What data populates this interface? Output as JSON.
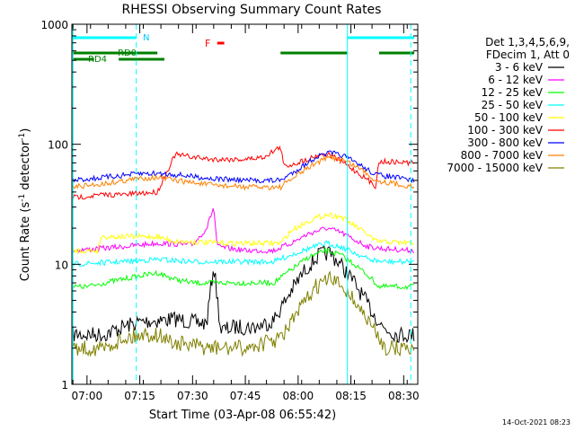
{
  "chart_data": {
    "type": "line",
    "title": "RHESSI Observing Summary Count Rates",
    "xlabel": "Start Time (03-Apr-08 06:55:42)",
    "ylabel": "Count Rate (s⁻¹ detector⁻¹)",
    "ylabel_main": "Count Rate (s",
    "ylabel_sup1": "-1",
    "ylabel_mid": " detector",
    "ylabel_sup2": "-1",
    "ylabel_end": ")",
    "yscale": "log",
    "ylim": [
      1,
      1000
    ],
    "xlim": [
      "06:55:42",
      "08:34:00"
    ],
    "x_ticks": [
      "07:00",
      "07:15",
      "07:30",
      "07:45",
      "08:00",
      "08:15",
      "08:30"
    ],
    "y_ticks": [
      "1",
      "10",
      "100",
      "1000"
    ],
    "info": [
      "Det 1,3,4,5,6,9,",
      "FDecim 1, Att 0"
    ],
    "datestamp": "14-Oct-2021 08:23",
    "flag_labels": {
      "N": "N",
      "F": "F",
      "RD0": "RD0",
      "RD4": "RD4"
    },
    "vlines_cyan_dashed": [
      "07:14:00",
      "08:32:00"
    ],
    "vlines_cyan_solid": [
      "06:56:00",
      "08:14:00"
    ],
    "series": [
      {
        "name": "3 - 6 keV",
        "color": "#000000",
        "points": [
          [
            "06:56",
            2.6
          ],
          [
            "07:05",
            2.6
          ],
          [
            "07:10",
            3.0
          ],
          [
            "07:15",
            3.3
          ],
          [
            "07:20",
            3.4
          ],
          [
            "07:25",
            3.5
          ],
          [
            "07:30",
            3.3
          ],
          [
            "07:34",
            3.2
          ],
          [
            "07:36",
            10.0
          ],
          [
            "07:38",
            2.8
          ],
          [
            "07:42",
            3.0
          ],
          [
            "07:48",
            3.0
          ],
          [
            "07:53",
            3.4
          ],
          [
            "07:58",
            6.0
          ],
          [
            "08:02",
            9.0
          ],
          [
            "08:06",
            12.0
          ],
          [
            "08:09",
            12.5
          ],
          [
            "08:12",
            10.0
          ],
          [
            "08:16",
            7.0
          ],
          [
            "08:20",
            4.5
          ],
          [
            "08:24",
            3.0
          ],
          [
            "08:28",
            2.6
          ],
          [
            "08:33",
            2.6
          ]
        ]
      },
      {
        "name": "6 - 12 keV",
        "color": "#ff00ff",
        "points": [
          [
            "06:56",
            13.0
          ],
          [
            "07:10",
            14.0
          ],
          [
            "07:20",
            15.0
          ],
          [
            "07:30",
            14.5
          ],
          [
            "07:34",
            20.0
          ],
          [
            "07:36",
            30.0
          ],
          [
            "07:37",
            14.0
          ],
          [
            "07:45",
            13.0
          ],
          [
            "07:53",
            13.0
          ],
          [
            "07:58",
            15.0
          ],
          [
            "08:03",
            18.0
          ],
          [
            "08:08",
            20.0
          ],
          [
            "08:12",
            18.5
          ],
          [
            "08:16",
            16.0
          ],
          [
            "08:20",
            14.0
          ],
          [
            "08:24",
            13.5
          ],
          [
            "08:33",
            13.0
          ]
        ]
      },
      {
        "name": "12 - 25 keV",
        "color": "#00ff00",
        "points": [
          [
            "06:56",
            6.5
          ],
          [
            "07:00",
            6.5
          ],
          [
            "07:05",
            7.0
          ],
          [
            "07:10",
            7.5
          ],
          [
            "07:15",
            8.0
          ],
          [
            "07:20",
            8.5
          ],
          [
            "07:25",
            7.5
          ],
          [
            "07:30",
            7.0
          ],
          [
            "07:40",
            7.0
          ],
          [
            "07:53",
            7.0
          ],
          [
            "07:58",
            9.0
          ],
          [
            "08:03",
            11.5
          ],
          [
            "08:08",
            13.0
          ],
          [
            "08:12",
            12.0
          ],
          [
            "08:16",
            10.0
          ],
          [
            "08:20",
            8.0
          ],
          [
            "08:23",
            6.5
          ],
          [
            "08:33",
            6.5
          ]
        ]
      },
      {
        "name": "25 - 50 keV",
        "color": "#00ffff",
        "points": [
          [
            "06:56",
            10.0
          ],
          [
            "07:10",
            10.5
          ],
          [
            "07:20",
            11.0
          ],
          [
            "07:30",
            10.5
          ],
          [
            "07:40",
            10.5
          ],
          [
            "07:53",
            10.5
          ],
          [
            "07:58",
            12.0
          ],
          [
            "08:03",
            13.5
          ],
          [
            "08:08",
            15.0
          ],
          [
            "08:12",
            14.0
          ],
          [
            "08:16",
            12.5
          ],
          [
            "08:20",
            11.0
          ],
          [
            "08:24",
            10.5
          ],
          [
            "08:33",
            10.5
          ]
        ]
      },
      {
        "name": "50 - 100 keV",
        "color": "#ffff00",
        "points": [
          [
            "06:56",
            13.0
          ],
          [
            "07:03",
            13.0
          ],
          [
            "07:04",
            17.0
          ],
          [
            "07:15",
            17.0
          ],
          [
            "07:20",
            17.0
          ],
          [
            "07:25",
            15.5
          ],
          [
            "07:40",
            15.0
          ],
          [
            "07:55",
            15.0
          ],
          [
            "07:58",
            19.0
          ],
          [
            "08:03",
            23.0
          ],
          [
            "08:08",
            26.0
          ],
          [
            "08:12",
            25.0
          ],
          [
            "08:16",
            21.0
          ],
          [
            "08:20",
            17.5
          ],
          [
            "08:22",
            15.5
          ],
          [
            "08:33",
            15.0
          ]
        ]
      },
      {
        "name": "100 - 300 keV",
        "color": "#ff0000",
        "points": [
          [
            "06:56",
            36.0
          ],
          [
            "07:05",
            38.0
          ],
          [
            "07:10",
            38.0
          ],
          [
            "07:20",
            40.0
          ],
          [
            "07:25",
            82.0
          ],
          [
            "07:35",
            75.0
          ],
          [
            "07:45",
            75.0
          ],
          [
            "07:50",
            78.0
          ],
          [
            "07:55",
            95.0
          ],
          [
            "07:56",
            65.0
          ],
          [
            "08:01",
            72.0
          ],
          [
            "08:06",
            82.0
          ],
          [
            "08:09",
            82.0
          ],
          [
            "08:13",
            70.0
          ],
          [
            "08:18",
            55.0
          ],
          [
            "08:22",
            45.0
          ],
          [
            "08:23",
            72.0
          ],
          [
            "08:33",
            70.0
          ]
        ]
      },
      {
        "name": "300 - 800 keV",
        "color": "#0000ff",
        "points": [
          [
            "06:56",
            50.0
          ],
          [
            "07:05",
            53.0
          ],
          [
            "07:15",
            57.0
          ],
          [
            "07:20",
            57.0
          ],
          [
            "07:25",
            56.0
          ],
          [
            "07:35",
            52.0
          ],
          [
            "07:45",
            50.0
          ],
          [
            "07:55",
            50.0
          ],
          [
            "08:00",
            62.0
          ],
          [
            "08:05",
            78.0
          ],
          [
            "08:09",
            85.0
          ],
          [
            "08:13",
            80.0
          ],
          [
            "08:18",
            66.0
          ],
          [
            "08:22",
            56.0
          ],
          [
            "08:33",
            50.0
          ]
        ]
      },
      {
        "name": "800 - 7000 keV",
        "color": "#ff8000",
        "points": [
          [
            "06:56",
            44.0
          ],
          [
            "07:05",
            47.0
          ],
          [
            "07:15",
            52.0
          ],
          [
            "07:20",
            53.0
          ],
          [
            "07:25",
            50.0
          ],
          [
            "07:35",
            46.0
          ],
          [
            "07:45",
            44.0
          ],
          [
            "07:55",
            44.0
          ],
          [
            "08:00",
            56.0
          ],
          [
            "08:05",
            70.0
          ],
          [
            "08:09",
            78.0
          ],
          [
            "08:13",
            74.0
          ],
          [
            "08:18",
            62.0
          ],
          [
            "08:22",
            50.0
          ],
          [
            "08:33",
            44.0
          ]
        ]
      },
      {
        "name": "7000 - 15000 keV",
        "color": "#808000",
        "points": [
          [
            "06:56",
            2.0
          ],
          [
            "07:05",
            2.0
          ],
          [
            "07:10",
            2.4
          ],
          [
            "07:15",
            2.6
          ],
          [
            "07:20",
            2.6
          ],
          [
            "07:25",
            2.2
          ],
          [
            "07:35",
            2.0
          ],
          [
            "07:45",
            2.0
          ],
          [
            "07:55",
            2.4
          ],
          [
            "08:00",
            4.0
          ],
          [
            "08:05",
            6.5
          ],
          [
            "08:09",
            7.5
          ],
          [
            "08:13",
            6.5
          ],
          [
            "08:17",
            4.5
          ],
          [
            "08:21",
            3.0
          ],
          [
            "08:25",
            2.0
          ],
          [
            "08:33",
            2.0
          ]
        ]
      }
    ],
    "flags": {
      "night_cyan": [
        [
          "06:56",
          "07:14"
        ],
        [
          "08:14",
          "08:33"
        ]
      ],
      "saa_green": [
        [
          "06:56",
          "07:20"
        ],
        [
          "07:55",
          "08:14"
        ],
        [
          "08:23",
          "08:33"
        ]
      ],
      "rd4_green": [
        [
          "06:56",
          "07:02"
        ],
        [
          "07:09",
          "07:22"
        ]
      ],
      "flare_red": [
        [
          "07:37",
          "07:39"
        ]
      ]
    }
  }
}
